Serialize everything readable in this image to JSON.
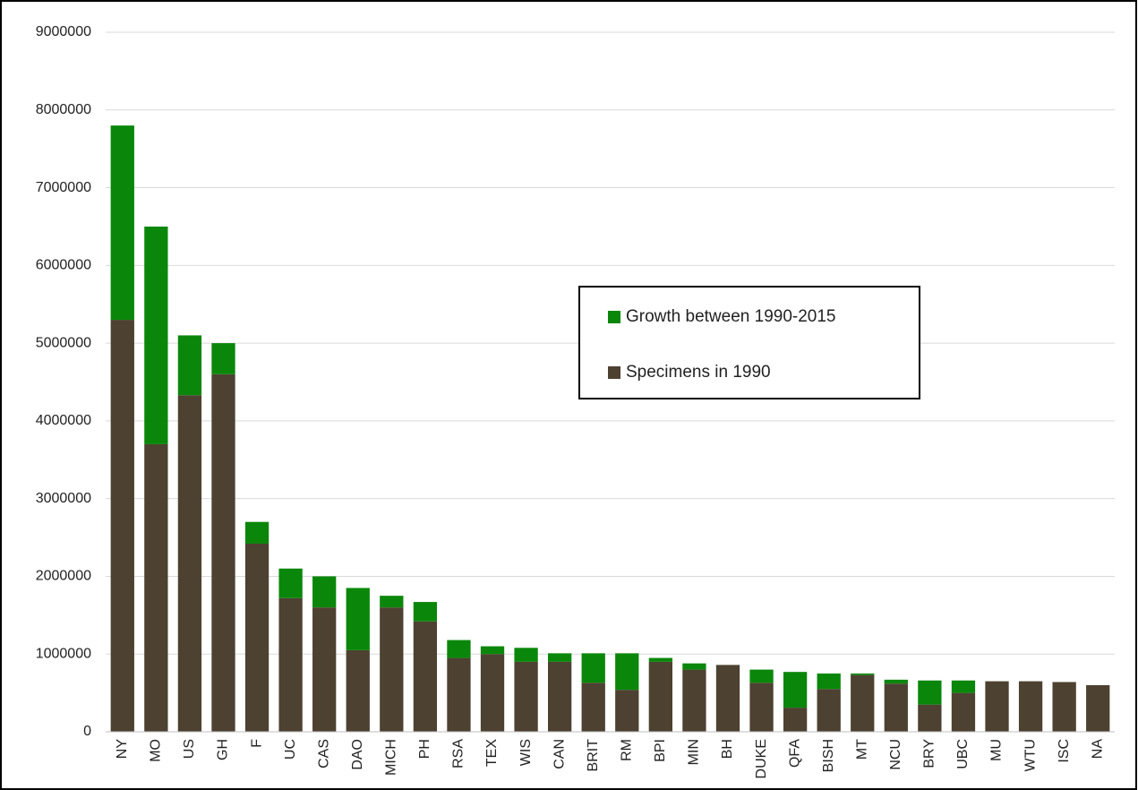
{
  "chart_data": {
    "type": "stacked-bar",
    "categories": [
      "NY",
      "MO",
      "US",
      "GH",
      "F",
      "UC",
      "CAS",
      "DAO",
      "MICH",
      "PH",
      "RSA",
      "TEX",
      "WIS",
      "CAN",
      "BRIT",
      "RM",
      "BPI",
      "MIN",
      "BH",
      "DUKE",
      "QFA",
      "BISH",
      "MT",
      "NCU",
      "BRY",
      "UBC",
      "MU",
      "WTU",
      "ISC",
      "NA"
    ],
    "series": [
      {
        "name": "Specimens in 1990",
        "color": "#4d4131",
        "values": [
          5300000,
          3700000,
          4330000,
          4600000,
          2420000,
          1720000,
          1600000,
          1050000,
          1600000,
          1420000,
          950000,
          1000000,
          900000,
          900000,
          630000,
          540000,
          900000,
          800000,
          860000,
          630000,
          310000,
          550000,
          730000,
          620000,
          350000,
          500000,
          650000,
          650000,
          640000,
          600000
        ]
      },
      {
        "name": "Growth between 1990-2015",
        "color": "#0a870a",
        "values": [
          2500000,
          2800000,
          770000,
          400000,
          280000,
          380000,
          400000,
          800000,
          150000,
          250000,
          230000,
          100000,
          180000,
          110000,
          380000,
          470000,
          50000,
          80000,
          0,
          170000,
          460000,
          200000,
          20000,
          50000,
          310000,
          160000,
          0,
          0,
          0,
          0
        ]
      }
    ],
    "ylim": [
      0,
      9000000
    ],
    "yticks": [
      0,
      1000000,
      2000000,
      3000000,
      4000000,
      5000000,
      6000000,
      7000000,
      8000000,
      9000000
    ],
    "grid": true,
    "legend": "right"
  }
}
